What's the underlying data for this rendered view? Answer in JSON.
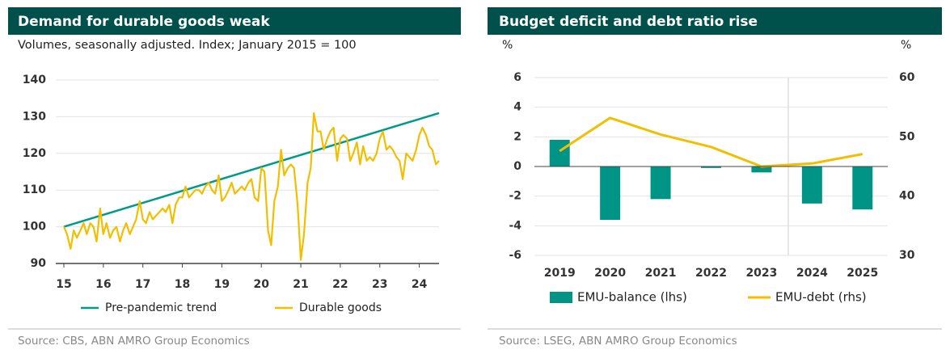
{
  "chart_data": [
    {
      "type": "line",
      "title": "Demand for durable goods weak",
      "subtitle": "Volumes, seasonally adjusted. Index; January 2015 = 100",
      "source": "Source: CBS, ABN AMRO Group Economics",
      "xlim": [
        15,
        24.5
      ],
      "xticks": [
        15,
        16,
        17,
        18,
        19,
        20,
        21,
        22,
        23,
        24
      ],
      "ylim": [
        90,
        140
      ],
      "yticks": [
        90,
        100,
        110,
        120,
        130,
        140
      ],
      "grid": true,
      "legend": "bottom",
      "series": [
        {
          "name": "Pre-pandemic trend",
          "color": "#00998a",
          "x": [
            15,
            24.5
          ],
          "values": [
            100,
            131
          ]
        },
        {
          "name": "Durable goods",
          "color": "#f2be00",
          "x": [
            15,
            15.08,
            15.17,
            15.25,
            15.33,
            15.42,
            15.5,
            15.58,
            15.67,
            15.75,
            15.83,
            15.92,
            16,
            16.08,
            16.17,
            16.25,
            16.33,
            16.42,
            16.5,
            16.58,
            16.67,
            16.75,
            16.83,
            16.92,
            17,
            17.08,
            17.17,
            17.25,
            17.33,
            17.42,
            17.5,
            17.58,
            17.67,
            17.75,
            17.83,
            17.92,
            18,
            18.08,
            18.17,
            18.25,
            18.33,
            18.42,
            18.5,
            18.58,
            18.67,
            18.75,
            18.83,
            18.92,
            19,
            19.08,
            19.17,
            19.25,
            19.33,
            19.42,
            19.5,
            19.58,
            19.67,
            19.75,
            19.83,
            19.92,
            20,
            20.08,
            20.17,
            20.25,
            20.33,
            20.42,
            20.5,
            20.58,
            20.67,
            20.75,
            20.83,
            20.92,
            21,
            21.08,
            21.17,
            21.25,
            21.33,
            21.42,
            21.5,
            21.58,
            21.67,
            21.75,
            21.83,
            21.92,
            22,
            22.08,
            22.17,
            22.25,
            22.33,
            22.42,
            22.5,
            22.58,
            22.67,
            22.75,
            22.83,
            22.92,
            23,
            23.08,
            23.17,
            23.25,
            23.33,
            23.42,
            23.5,
            23.58,
            23.67,
            23.75,
            23.83,
            23.92,
            24,
            24.08,
            24.17,
            24.25,
            24.33,
            24.42,
            24.5
          ],
          "values": [
            100,
            98,
            94,
            99,
            97,
            99,
            101,
            98,
            101,
            100,
            96,
            105,
            98,
            101,
            97,
            99,
            100,
            96,
            99,
            101,
            98,
            100,
            102,
            107,
            102,
            101,
            104,
            102,
            103,
            104,
            105,
            104,
            106,
            101,
            106,
            108,
            108,
            111,
            108,
            109,
            110,
            110,
            109,
            111,
            112,
            110,
            109,
            114,
            107,
            108,
            110,
            112,
            109,
            110,
            111,
            110,
            112,
            113,
            108,
            107,
            116,
            115,
            99,
            95,
            107,
            111,
            121,
            114,
            116,
            117,
            116,
            106,
            91,
            98,
            112,
            116,
            131,
            126,
            126,
            121,
            124,
            126,
            127,
            118,
            124,
            125,
            124,
            118,
            120,
            123,
            117,
            122,
            118,
            119,
            118,
            120,
            124,
            126,
            121,
            122,
            121,
            119,
            118,
            113,
            120,
            119,
            118,
            121,
            125,
            127,
            125,
            122,
            121,
            117,
            118
          ]
        }
      ]
    },
    {
      "type": "bar",
      "title": "Budget deficit and debt ratio rise",
      "source": "Source: LSEG, ABN AMRO Group Economics",
      "ylabel": "%",
      "y2label": "%",
      "categories": [
        "2019",
        "2020",
        "2021",
        "2022",
        "2023",
        "2024",
        "2025"
      ],
      "ylim": [
        -6,
        6
      ],
      "yticks": [
        -6,
        -4,
        -2,
        0,
        2,
        4,
        6
      ],
      "y2lim": [
        30,
        60
      ],
      "y2ticks": [
        30,
        40,
        50,
        60
      ],
      "grid": true,
      "legend": "bottom",
      "series": [
        {
          "name": "EMU-balance (lhs)",
          "type": "bar",
          "color": "#009486",
          "values": [
            1.8,
            -3.6,
            -2.2,
            -0.1,
            -0.4,
            -2.5,
            -2.9
          ]
        },
        {
          "name": "EMU-debt (rhs)",
          "type": "line",
          "axis": "y2",
          "color": "#f2be00",
          "values": [
            47.6,
            53.2,
            50.4,
            48.3,
            45.0,
            45.5,
            47.1
          ]
        }
      ]
    }
  ]
}
